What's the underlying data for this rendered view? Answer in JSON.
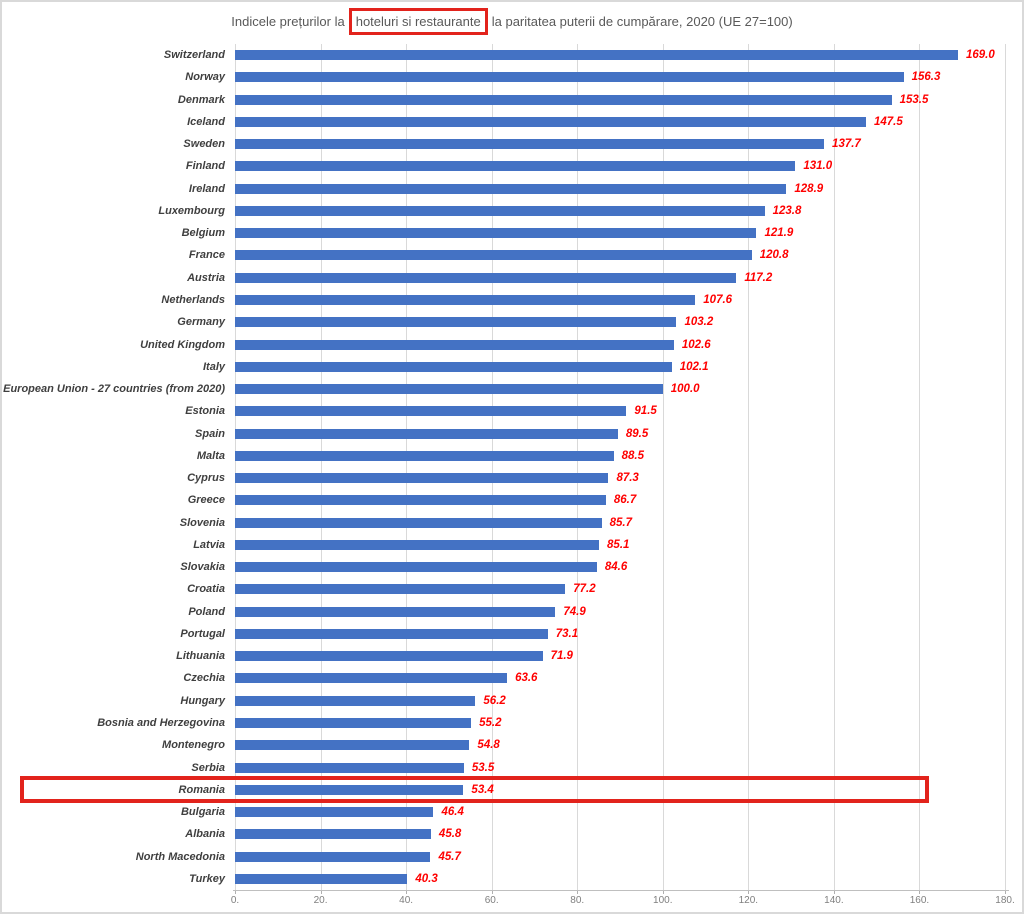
{
  "title": {
    "prefix": "Indicele prețurilor la",
    "highlight": "hoteluri si restaurante",
    "suffix": "la paritatea puterii de cumpărare, 2020 (UE 27=100)"
  },
  "chart_data": {
    "type": "bar",
    "orientation": "horizontal",
    "title": "Indicele prețurilor la hoteluri si restaurante la paritatea puterii de cumpărare, 2020 (UE 27=100)",
    "categories": [
      "Switzerland",
      "Norway",
      "Denmark",
      "Iceland",
      "Sweden",
      "Finland",
      "Ireland",
      "Luxembourg",
      "Belgium",
      "France",
      "Austria",
      "Netherlands",
      "Germany",
      "United Kingdom",
      "Italy",
      "European Union - 27 countries (from 2020)",
      "Estonia",
      "Spain",
      "Malta",
      "Cyprus",
      "Greece",
      "Slovenia",
      "Latvia",
      "Slovakia",
      "Croatia",
      "Poland",
      "Portugal",
      "Lithuania",
      "Czechia",
      "Hungary",
      "Bosnia and Herzegovina",
      "Montenegro",
      "Serbia",
      "Romania",
      "Bulgaria",
      "Albania",
      "North Macedonia",
      "Turkey"
    ],
    "values": [
      169.0,
      156.3,
      153.5,
      147.5,
      137.7,
      131.0,
      128.9,
      123.8,
      121.9,
      120.8,
      117.2,
      107.6,
      103.2,
      102.6,
      102.1,
      100.0,
      91.5,
      89.5,
      88.5,
      87.3,
      86.7,
      85.7,
      85.1,
      84.6,
      77.2,
      74.9,
      73.1,
      71.9,
      63.6,
      56.2,
      55.2,
      54.8,
      53.5,
      53.4,
      46.4,
      45.8,
      45.7,
      40.3
    ],
    "value_labels": [
      "169.0",
      "156.3",
      "153.5",
      "147.5",
      "137.7",
      "131.0",
      "128.9",
      "123.8",
      "121.9",
      "120.8",
      "117.2",
      "107.6",
      "103.2",
      "102.6",
      "102.1",
      "100.0",
      "91.5",
      "89.5",
      "88.5",
      "87.3",
      "86.7",
      "85.7",
      "85.1",
      "84.6",
      "77.2",
      "74.9",
      "73.1",
      "71.9",
      "63.6",
      "56.2",
      "55.2",
      "54.8",
      "53.5",
      "53.4",
      "46.4",
      "45.8",
      "45.7",
      "40.3"
    ],
    "xlabel": "",
    "ylabel": "",
    "xlim": [
      0,
      180
    ],
    "x_tick_values": [
      0,
      20,
      40,
      60,
      80,
      100,
      120,
      140,
      160,
      180
    ],
    "x_tick_labels": [
      "0.",
      "20.",
      "40.",
      "60.",
      "80.",
      "100.",
      "120.",
      "140.",
      "160.",
      "180."
    ],
    "grid": true,
    "legend": false,
    "annotations": {
      "highlighted_row": "Romania",
      "title_highlight": "hoteluri si restaurante"
    }
  },
  "colors": {
    "bar": "#4472C4",
    "value_label": "#FF0000",
    "category_label": "#3F3F3F",
    "title": "#595959",
    "gridline": "#D9D9D9",
    "axis": "#BFBFBF",
    "tick_label": "#7F7F7F",
    "highlight_box": "#E2231C",
    "frame_border": "#D9D9D9",
    "background": "#FFFFFF"
  }
}
